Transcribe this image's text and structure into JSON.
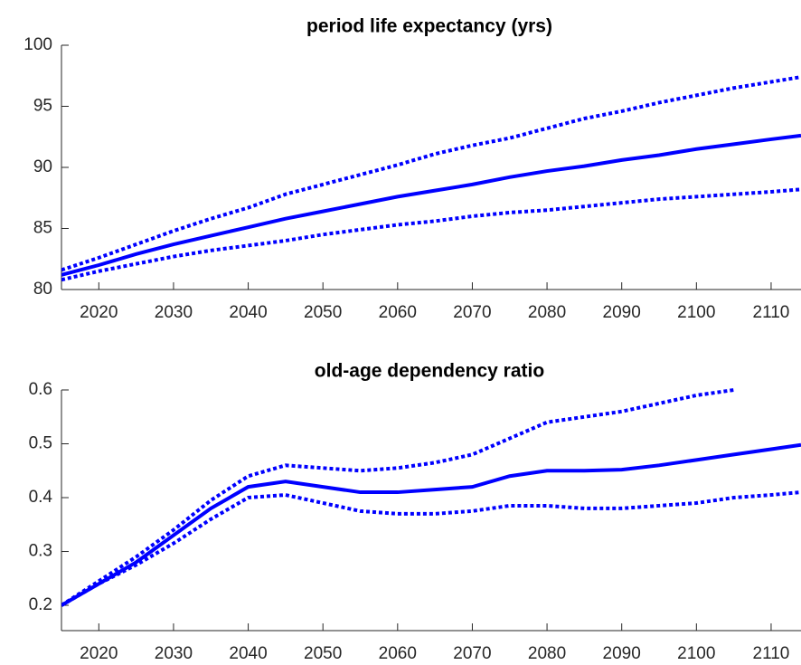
{
  "chart_data": [
    {
      "type": "line",
      "title": "period life expectancy (yrs)",
      "x": [
        2015,
        2020,
        2025,
        2030,
        2035,
        2040,
        2045,
        2050,
        2055,
        2060,
        2065,
        2070,
        2075,
        2080,
        2085,
        2090,
        2095,
        2100,
        2105,
        2110,
        2114
      ],
      "series": [
        {
          "color": "#0000ff",
          "style": "solid",
          "values": [
            81.2,
            82.0,
            82.9,
            83.7,
            84.4,
            85.1,
            85.8,
            86.4,
            87.0,
            87.6,
            88.1,
            88.6,
            89.2,
            89.7,
            90.1,
            90.6,
            91.0,
            91.5,
            91.9,
            92.3,
            92.6
          ]
        },
        {
          "color": "#0000ff",
          "style": "dotted",
          "values": [
            81.6,
            82.6,
            83.7,
            84.8,
            85.8,
            86.7,
            87.8,
            88.6,
            89.4,
            90.2,
            91.1,
            91.8,
            92.4,
            93.2,
            94.0,
            94.6,
            95.3,
            95.9,
            96.5,
            97.0,
            97.4
          ]
        },
        {
          "color": "#0000ff",
          "style": "dotted",
          "values": [
            80.8,
            81.5,
            82.1,
            82.7,
            83.2,
            83.6,
            84.0,
            84.5,
            84.9,
            85.3,
            85.6,
            86.0,
            86.3,
            86.5,
            86.8,
            87.1,
            87.4,
            87.6,
            87.8,
            88.0,
            88.2
          ]
        }
      ],
      "xlim": [
        2015,
        2114
      ],
      "xticks": [
        2020,
        2030,
        2040,
        2050,
        2060,
        2070,
        2080,
        2090,
        2100,
        2110
      ],
      "ylim": [
        80,
        100
      ],
      "yticks": [
        80,
        85,
        90,
        95,
        100
      ]
    },
    {
      "type": "line",
      "title": "old-age dependency ratio",
      "x": [
        2015,
        2020,
        2025,
        2030,
        2035,
        2040,
        2045,
        2050,
        2055,
        2060,
        2065,
        2070,
        2075,
        2080,
        2085,
        2090,
        2095,
        2100,
        2105,
        2110,
        2114
      ],
      "series": [
        {
          "color": "#0000ff",
          "style": "solid",
          "values": [
            0.2,
            0.24,
            0.28,
            0.33,
            0.38,
            0.42,
            0.43,
            0.42,
            0.41,
            0.41,
            0.415,
            0.42,
            0.44,
            0.45,
            0.45,
            0.452,
            0.46,
            0.47,
            0.48,
            0.49,
            0.498
          ]
        },
        {
          "color": "#0000ff",
          "style": "dotted",
          "values": [
            0.2,
            0.245,
            0.29,
            0.34,
            0.395,
            0.44,
            0.46,
            0.455,
            0.45,
            0.455,
            0.465,
            0.48,
            0.51,
            0.54,
            0.55,
            0.56,
            0.575,
            0.59,
            0.6,
            null,
            null
          ]
        },
        {
          "color": "#0000ff",
          "style": "dotted",
          "values": [
            0.2,
            0.24,
            0.275,
            0.315,
            0.36,
            0.4,
            0.405,
            0.39,
            0.375,
            0.37,
            0.37,
            0.375,
            0.385,
            0.385,
            0.38,
            0.38,
            0.385,
            0.39,
            0.4,
            0.405,
            0.41
          ]
        }
      ],
      "xlim": [
        2015,
        2114
      ],
      "xticks": [
        2020,
        2030,
        2040,
        2050,
        2060,
        2070,
        2080,
        2090,
        2100,
        2110
      ],
      "ylim": [
        0.153,
        0.6
      ],
      "yticks": [
        0.2,
        0.3,
        0.4,
        0.5,
        0.6
      ]
    }
  ]
}
